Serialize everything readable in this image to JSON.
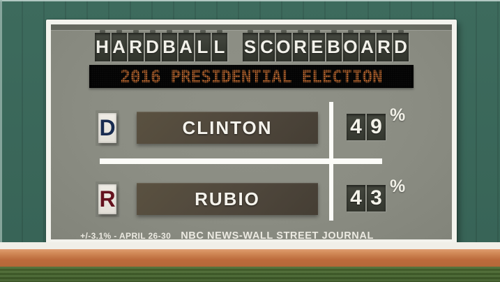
{
  "chart_data": {
    "type": "table",
    "title": "HARDBALL SCOREBOARD",
    "subtitle": "2016 PRESIDENTIAL ELECTION",
    "categories": [
      "CLINTON (D)",
      "RUBIO (R)"
    ],
    "values": [
      49,
      43
    ],
    "unit": "%",
    "margin_of_error": "+/-3.1%",
    "dates": "APRIL 26-30",
    "source": "NBC NEWS-WALL STREET JOURNAL"
  },
  "scoreboard": {
    "title_words": [
      "HARDBALL",
      "SCOREBOARD"
    ],
    "subtitle": "2016 PRESIDENTIAL ELECTION",
    "rows": [
      {
        "party_letter": "D",
        "party_color": "#182b50",
        "candidate": "CLINTON",
        "value": "49",
        "percent": "%"
      },
      {
        "party_letter": "R",
        "party_color": "#64121e",
        "candidate": "RUBIO",
        "value": "43",
        "percent": "%"
      }
    ],
    "footnote": {
      "poll_details": "+/-3.1% - APRIL 26-30",
      "source": "NBC NEWS-WALL STREET JOURNAL"
    }
  },
  "colors": {
    "wall_green": "#3a685a",
    "board_gray": "#8b8d83",
    "tile_dark": "#3a3d35",
    "led_orange": "#e8823c",
    "plate_brown": "#4f473c",
    "democrat_navy": "#182b50",
    "republican_maroon": "#64121e",
    "warning_track_orange": "#c4713f",
    "grass_green": "#48662f",
    "stripe_white": "#f0efe8"
  }
}
